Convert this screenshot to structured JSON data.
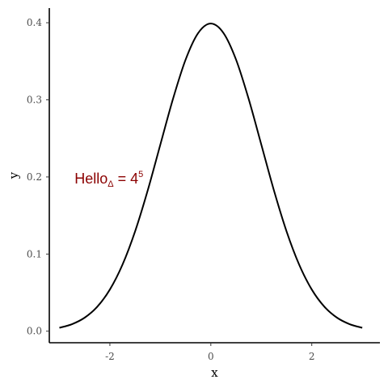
{
  "chart_data": {
    "type": "line",
    "xlabel": "x",
    "ylabel": "y",
    "xlim": [
      -3.2,
      3.35
    ],
    "ylim": [
      -0.015,
      0.419
    ],
    "x_ticks": [
      -2,
      0,
      2
    ],
    "x_tick_labels": [
      "-2",
      "0",
      "2"
    ],
    "y_ticks": [
      0.0,
      0.1,
      0.2,
      0.3,
      0.4
    ],
    "y_tick_labels": [
      "0.0",
      "0.1",
      "0.2",
      "0.3",
      "0.4"
    ],
    "grid": false,
    "line_color": "#000000",
    "series": [
      {
        "x": [
          -3,
          -2.75,
          -2.5,
          -2.25,
          -2,
          -1.75,
          -1.5,
          -1.25,
          -1,
          -0.75,
          -0.5,
          -0.25,
          0,
          0.25,
          0.5,
          0.75,
          1,
          1.25,
          1.5,
          1.75,
          2,
          2.25,
          2.5,
          2.75,
          3
        ],
        "y": [
          0.0044,
          0.0091,
          0.0175,
          0.0317,
          0.054,
          0.0863,
          0.1295,
          0.1826,
          0.242,
          0.3011,
          0.3521,
          0.3867,
          0.3989,
          0.3867,
          0.3521,
          0.3011,
          0.242,
          0.1826,
          0.1295,
          0.0863,
          0.054,
          0.0317,
          0.0175,
          0.0091,
          0.0044
        ]
      }
    ],
    "annotation": {
      "base": "Hello",
      "subscript": "Δ",
      "middle": " = 4",
      "superscript": "5",
      "x": -2.7,
      "y": 0.2,
      "color": "#8b0000"
    }
  }
}
